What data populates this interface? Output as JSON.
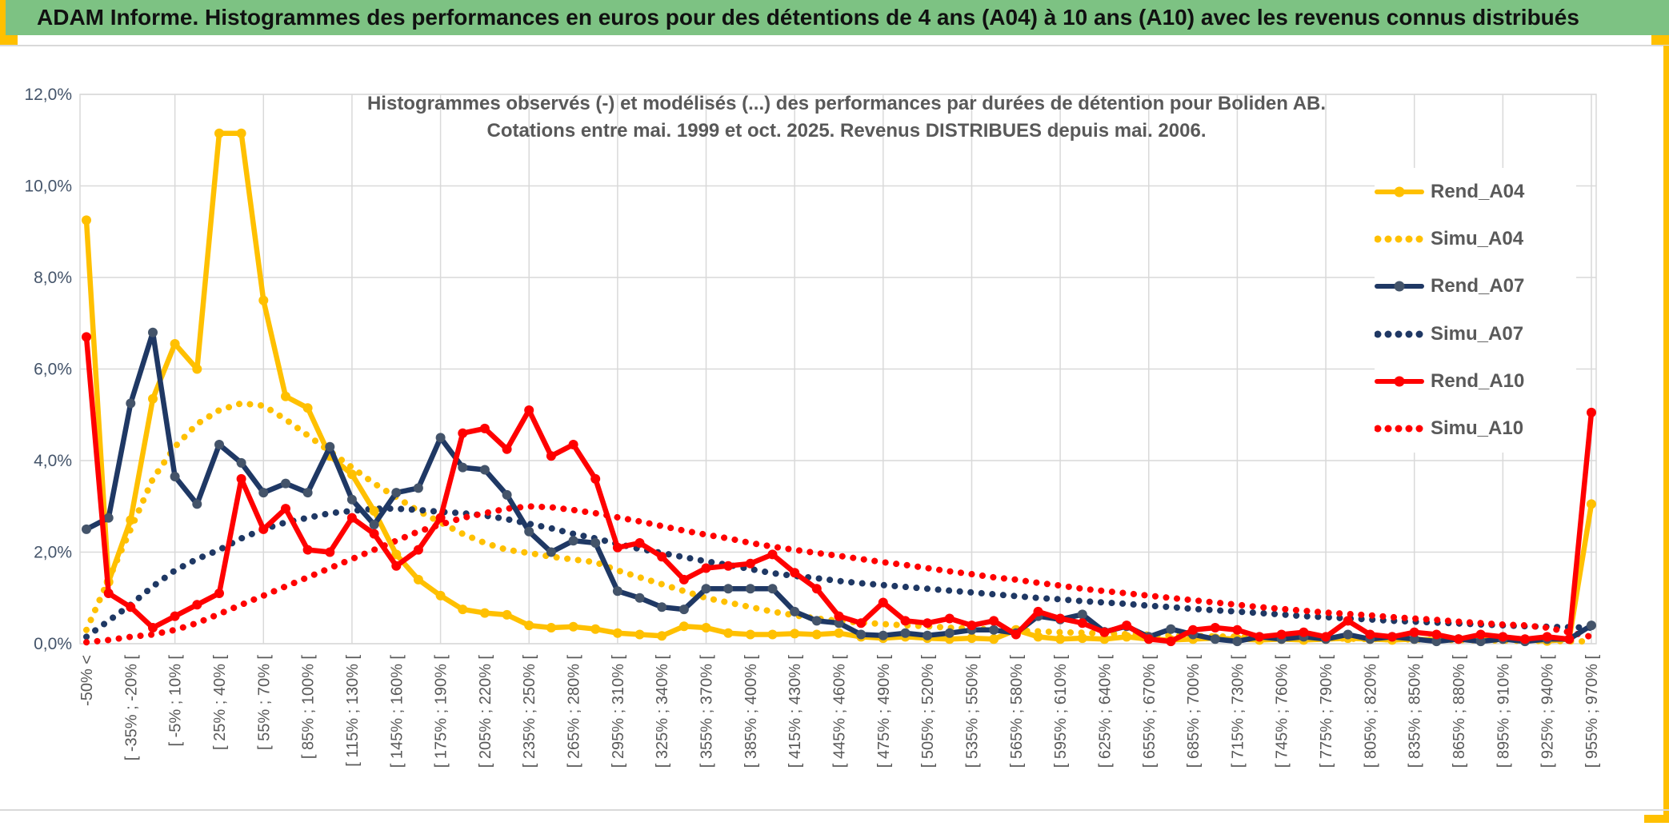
{
  "page": {
    "header": {
      "title": "ADAM Informe. Histogrammes des performances en euros pour des détentions de 4 ans (A04) à 10 ans (A10) avec les revenus connus distribués"
    },
    "colors": {
      "header_green": "#7dc283",
      "accent_gold": "#ffc000",
      "grid_gray": "#d9d9d9",
      "text_gray": "#595959",
      "ytick_gray_blue": "#44546a"
    }
  },
  "chart_data": {
    "type": "line",
    "title_line1": "Histogrammes observés (-) et modélisés (...) des performances par durées de détention pour Boliden AB.",
    "title_line2": "Cotations entre mai. 1999 et oct. 2025. Revenus DISTRIBUES depuis mai. 2006.",
    "grid": true,
    "legend_position": "inside top-right",
    "ylim": [
      0,
      12
    ],
    "y_ticks": [
      "12,0%",
      "10,0%",
      "8,0%",
      "6,0%",
      "4,0%",
      "2,0%",
      "0,0%"
    ],
    "x_labels_note": "one label per two 15%-wide bins; 69 bins total",
    "x_labels": [
      "-50% <",
      "[ -35% ; -20% [",
      "[ -5% ; 10% [",
      "[ 25% ; 40% [",
      "[ 55% ; 70% [",
      "[ 85% ; 100% [",
      "[ 115% ; 130% [",
      "[ 145% ; 160% [",
      "[ 175% ; 190% [",
      "[ 205% ; 220% [",
      "[ 235% ; 250% [",
      "[ 265% ; 280% [",
      "[ 295% ; 310% [",
      "[ 325% ; 340% [",
      "[ 355% ; 370% [",
      "[ 385% ; 400% [",
      "[ 415% ; 430% [",
      "[ 445% ; 460% [",
      "[ 475% ; 490% [",
      "[ 505% ; 520% [",
      "[ 535% ; 550% [",
      "[ 565% ; 580% [",
      "[ 595% ; 610% [",
      "[ 625% ; 640% [",
      "[ 655% ; 670% [",
      "[ 685% ; 700% [",
      "[ 715% ; 730% [",
      "[ 745% ; 760% [",
      "[ 775% ; 790% [",
      "[ 805% ; 820% [",
      "[ 835% ; 850% [",
      "[ 865% ; 880% [",
      "[ 895% ; 910% [",
      "[ 925% ; 940% [",
      "[ 955% ; 970% ["
    ],
    "series": [
      {
        "name": "Rend_A04",
        "style": "solid",
        "color": "#ffc000",
        "marker_color": "#ffc000",
        "values": [
          9.25,
          1.35,
          2.7,
          5.35,
          6.55,
          6.0,
          11.15,
          11.15,
          7.5,
          5.4,
          5.15,
          4.1,
          3.7,
          2.9,
          1.95,
          1.4,
          1.05,
          0.75,
          0.67,
          0.63,
          0.4,
          0.35,
          0.37,
          0.32,
          0.23,
          0.2,
          0.17,
          0.38,
          0.35,
          0.23,
          0.2,
          0.2,
          0.22,
          0.2,
          0.23,
          0.15,
          0.12,
          0.15,
          0.12,
          0.1,
          0.12,
          0.1,
          0.3,
          0.15,
          0.1,
          0.12,
          0.1,
          0.15,
          0.1,
          0.08,
          0.1,
          0.12,
          0.1,
          0.08,
          0.1,
          0.08,
          0.1,
          0.12,
          0.1,
          0.08,
          0.1,
          0.08,
          0.1,
          0.08,
          0.1,
          0.08,
          0.06,
          0.1,
          3.05
        ]
      },
      {
        "name": "Simu_A04",
        "style": "dotted",
        "color": "#ffc000",
        "values": [
          0.3,
          1.4,
          2.5,
          3.6,
          4.3,
          4.8,
          5.1,
          5.25,
          5.2,
          4.9,
          4.55,
          4.2,
          3.85,
          3.5,
          3.2,
          2.9,
          2.65,
          2.4,
          2.2,
          2.05,
          1.98,
          1.9,
          1.84,
          1.78,
          1.6,
          1.45,
          1.3,
          1.15,
          1.0,
          0.9,
          0.8,
          0.7,
          0.62,
          0.55,
          0.5,
          0.46,
          0.43,
          0.4,
          0.38,
          0.35,
          0.33,
          0.31,
          0.29,
          0.27,
          0.25,
          0.24,
          0.22,
          0.21,
          0.2,
          0.18,
          0.17,
          0.16,
          0.15,
          0.14,
          0.13,
          0.12,
          0.12,
          0.11,
          0.1,
          0.1,
          0.09,
          0.08,
          0.08,
          0.07,
          0.07,
          0.06,
          0.06,
          0.05,
          0.05
        ]
      },
      {
        "name": "Rend_A07",
        "style": "solid",
        "color": "#1f3864",
        "marker_color": "#44546a",
        "values": [
          2.5,
          2.75,
          5.25,
          6.8,
          3.65,
          3.05,
          4.35,
          3.95,
          3.3,
          3.5,
          3.3,
          4.3,
          3.15,
          2.6,
          3.3,
          3.4,
          4.5,
          3.85,
          3.8,
          3.25,
          2.45,
          2.0,
          2.25,
          2.2,
          1.15,
          1.0,
          0.8,
          0.75,
          1.2,
          1.2,
          1.2,
          1.2,
          0.7,
          0.5,
          0.45,
          0.2,
          0.18,
          0.23,
          0.18,
          0.23,
          0.3,
          0.3,
          0.23,
          0.6,
          0.53,
          0.64,
          0.26,
          0.38,
          0.15,
          0.32,
          0.2,
          0.1,
          0.05,
          0.15,
          0.1,
          0.15,
          0.1,
          0.2,
          0.1,
          0.15,
          0.1,
          0.05,
          0.1,
          0.05,
          0.1,
          0.05,
          0.1,
          0.1,
          0.4
        ]
      },
      {
        "name": "Simu_A07",
        "style": "dotted",
        "color": "#1f3864",
        "values": [
          0.15,
          0.5,
          0.85,
          1.25,
          1.6,
          1.85,
          2.05,
          2.3,
          2.5,
          2.65,
          2.75,
          2.85,
          2.9,
          2.95,
          2.95,
          2.92,
          2.88,
          2.85,
          2.8,
          2.72,
          2.62,
          2.52,
          2.4,
          2.3,
          2.18,
          2.07,
          1.98,
          1.89,
          1.8,
          1.72,
          1.63,
          1.54,
          1.48,
          1.43,
          1.37,
          1.32,
          1.28,
          1.24,
          1.2,
          1.16,
          1.12,
          1.08,
          1.04,
          1.0,
          0.97,
          0.93,
          0.9,
          0.87,
          0.83,
          0.8,
          0.76,
          0.73,
          0.7,
          0.67,
          0.64,
          0.6,
          0.58,
          0.55,
          0.53,
          0.5,
          0.48,
          0.46,
          0.44,
          0.42,
          0.4,
          0.38,
          0.37,
          0.36,
          0.35
        ]
      },
      {
        "name": "Rend_A10",
        "style": "solid",
        "color": "#ff0000",
        "marker_color": "#ff0000",
        "values": [
          6.7,
          1.1,
          0.8,
          0.35,
          0.6,
          0.85,
          1.1,
          3.6,
          2.5,
          2.95,
          2.05,
          2.0,
          2.75,
          2.4,
          1.7,
          2.05,
          2.75,
          4.6,
          4.7,
          4.25,
          5.1,
          4.1,
          4.35,
          3.6,
          2.1,
          2.2,
          1.9,
          1.4,
          1.65,
          1.7,
          1.75,
          1.95,
          1.55,
          1.2,
          0.6,
          0.45,
          0.9,
          0.5,
          0.45,
          0.55,
          0.4,
          0.5,
          0.2,
          0.7,
          0.55,
          0.45,
          0.25,
          0.4,
          0.1,
          0.05,
          0.3,
          0.35,
          0.3,
          0.15,
          0.2,
          0.25,
          0.15,
          0.5,
          0.2,
          0.15,
          0.25,
          0.2,
          0.1,
          0.2,
          0.15,
          0.1,
          0.15,
          0.1,
          5.05
        ]
      },
      {
        "name": "Simu_A10",
        "style": "dotted",
        "color": "#ff0000",
        "values": [
          0.03,
          0.08,
          0.15,
          0.2,
          0.3,
          0.45,
          0.65,
          0.85,
          1.05,
          1.25,
          1.45,
          1.65,
          1.85,
          2.05,
          2.25,
          2.45,
          2.6,
          2.75,
          2.85,
          2.95,
          3.0,
          2.98,
          2.92,
          2.85,
          2.76,
          2.67,
          2.57,
          2.47,
          2.38,
          2.3,
          2.2,
          2.12,
          2.05,
          1.98,
          1.92,
          1.85,
          1.78,
          1.72,
          1.65,
          1.58,
          1.52,
          1.45,
          1.4,
          1.33,
          1.27,
          1.2,
          1.15,
          1.1,
          1.05,
          1.0,
          0.95,
          0.9,
          0.85,
          0.8,
          0.76,
          0.72,
          0.68,
          0.65,
          0.62,
          0.58,
          0.55,
          0.52,
          0.48,
          0.45,
          0.42,
          0.4,
          0.35,
          0.25,
          0.15
        ]
      }
    ]
  }
}
